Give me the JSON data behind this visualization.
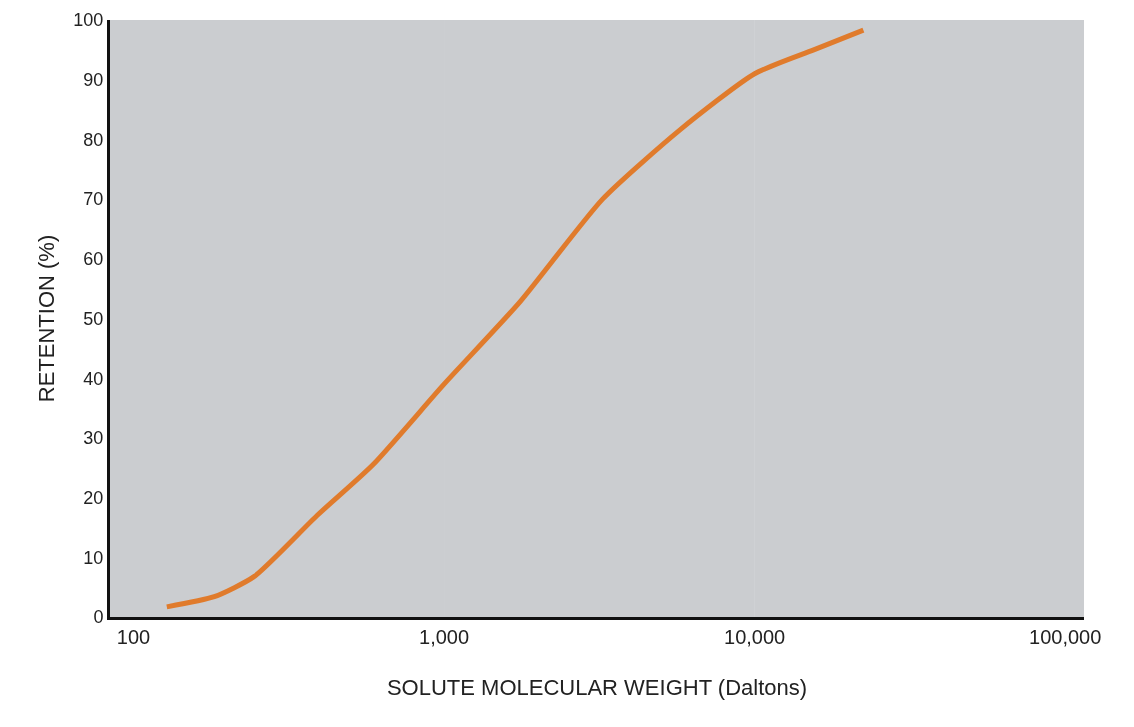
{
  "chart_data": {
    "type": "line",
    "xlabel": "SOLUTE MOLECULAR WEIGHT (Daltons)",
    "ylabel": "RETENTION (%)",
    "log": "x",
    "xlim": [
      84,
      115000
    ],
    "xticks": [
      100,
      {
        "value": 1000,
        "label": "1,000"
      },
      {
        "value": 10000,
        "label": "10,000"
      },
      {
        "value": 100000,
        "label": "100,000"
      }
    ],
    "ylim": [
      0,
      100
    ],
    "yticks": [
      0,
      10,
      20,
      30,
      40,
      50,
      60,
      70,
      80,
      90,
      100
    ],
    "grid": false,
    "marker": "none",
    "line_style": "solid",
    "bands": [
      {
        "axis": "x",
        "from": 84,
        "to": 1000,
        "color": "#8c9196"
      },
      {
        "axis": "x",
        "from": 1000,
        "to": 10000,
        "color": "#8c9196"
      },
      {
        "axis": "x",
        "from": 10000,
        "to": 115000,
        "color": "#8c9196"
      }
    ],
    "series": [
      {
        "color": "#e07b2c",
        "x": [
          128,
          182,
          245,
          390,
          590,
          1000,
          1750,
          3240,
          5750,
          10000,
          15500,
          22400
        ],
        "values": [
          1.7,
          3.4,
          6.8,
          17,
          25.5,
          39,
          52.7,
          70,
          81.6,
          91,
          95,
          98.3
        ]
      }
    ]
  }
}
